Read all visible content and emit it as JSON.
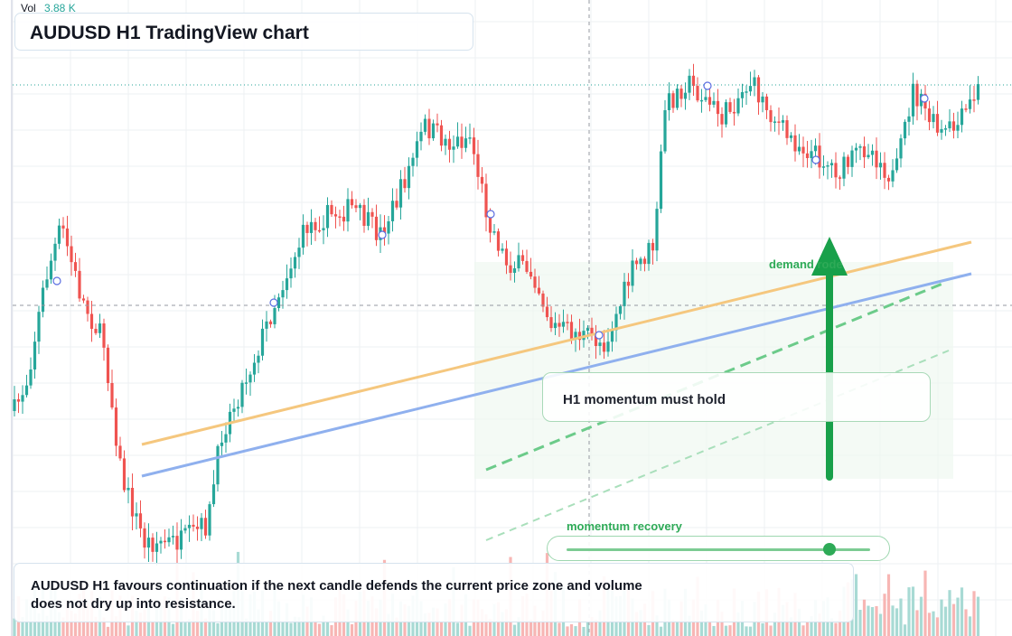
{
  "volume": {
    "label": "Vol",
    "value": "3.88 K"
  },
  "title": "AUDUSD H1 TradingView chart",
  "annotations": {
    "momentum_callout": "H1 momentum must hold",
    "demand_label": "demand rode",
    "recovery_label": "momentum recovery",
    "caption": "AUDUSD H1 favours continuation if the next candle defends the current price zone and volume does not dry up into resistance."
  },
  "slider": {
    "name": "momentum recovery",
    "level_fraction": 0.87
  },
  "colors": {
    "bull": "#26a69a",
    "bear": "#ef5350",
    "accent_green": "#2eaa57",
    "trendline_orange": "#f5c77e",
    "trendline_blue": "#8fb0ee",
    "vol_bull": "#a8dad4",
    "vol_bear": "#f7b6b4"
  },
  "icons": [
    "arrow-up-icon",
    "event-marker-icon"
  ]
}
